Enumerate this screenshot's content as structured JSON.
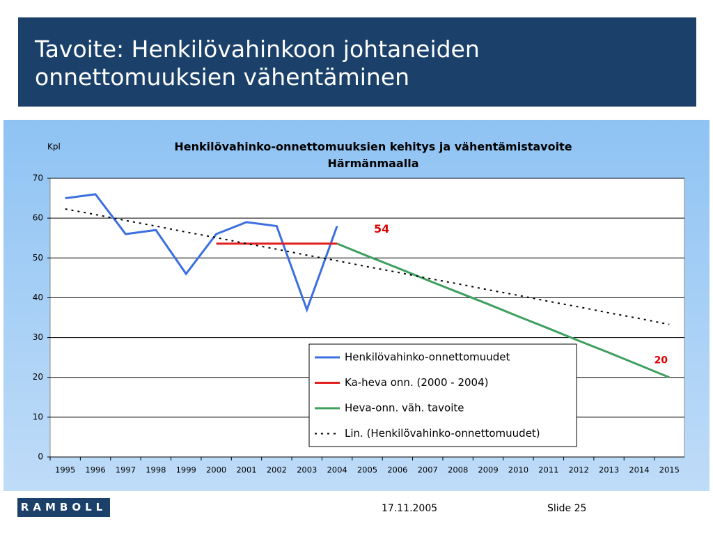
{
  "slide": {
    "title": "Tavoite: Henkilövahinkoon johtaneiden onnettomuuksien vähentäminen",
    "logo": "RAMBOLL",
    "date": "17.11.2005",
    "slide_number": "Slide 25"
  },
  "chart_data": {
    "type": "line",
    "title": "Henkilövahinko-onnettomuuksien kehitys ja vähentämistavoite Härmänmaalla",
    "y_label": "Kpl",
    "categories": [
      "1995",
      "1996",
      "1997",
      "1998",
      "1999",
      "2000",
      "2001",
      "2002",
      "2003",
      "2004",
      "2005",
      "2006",
      "2007",
      "2008",
      "2009",
      "2010",
      "2011",
      "2012",
      "2013",
      "2014",
      "2015"
    ],
    "ylim": [
      0,
      70
    ],
    "yticks": [
      0,
      10,
      20,
      30,
      40,
      50,
      60,
      70
    ],
    "grid": true,
    "legend": "bottom-right",
    "series": [
      {
        "name": "Henkilövahinko-onnettomuudet",
        "color": "#3b6fe0",
        "style": "solid",
        "values": [
          65,
          66,
          56,
          57,
          46,
          56,
          59,
          58,
          37,
          58,
          null,
          null,
          null,
          null,
          null,
          null,
          null,
          null,
          null,
          null,
          null
        ]
      },
      {
        "name": "Ka-heva onn. (2000 - 2004)",
        "color": "#e02020",
        "style": "solid",
        "values": [
          null,
          null,
          null,
          null,
          null,
          53.6,
          53.6,
          53.6,
          53.6,
          53.6,
          null,
          null,
          null,
          null,
          null,
          null,
          null,
          null,
          null,
          null,
          null
        ],
        "value_labels": [
          null,
          null,
          null,
          null,
          null,
          null,
          null,
          null,
          null,
          "54",
          null,
          null,
          null,
          null,
          null,
          null,
          null,
          null,
          null,
          null,
          null
        ]
      },
      {
        "name": "Heva-onn. väh. tavoite",
        "color": "#3f9f5f",
        "style": "solid",
        "values": [
          null,
          null,
          null,
          null,
          null,
          null,
          null,
          null,
          null,
          53.6,
          50.5,
          47.5,
          44.4,
          41.4,
          38.4,
          35.3,
          32.3,
          29.2,
          26.2,
          23.1,
          20
        ],
        "value_labels": [
          null,
          null,
          null,
          null,
          null,
          null,
          null,
          null,
          null,
          null,
          null,
          null,
          null,
          null,
          null,
          null,
          null,
          null,
          null,
          null,
          "20"
        ]
      },
      {
        "name": "Lin. (Henkilövahinko-onnettomuudet)",
        "color": "#000000",
        "style": "dotted",
        "values": [
          62.3,
          60.9,
          59.4,
          58.0,
          56.5,
          55.1,
          53.6,
          52.2,
          50.7,
          49.3,
          47.8,
          46.4,
          44.9,
          43.5,
          42.0,
          40.6,
          39.1,
          37.7,
          36.2,
          34.8,
          33.3
        ]
      }
    ]
  }
}
